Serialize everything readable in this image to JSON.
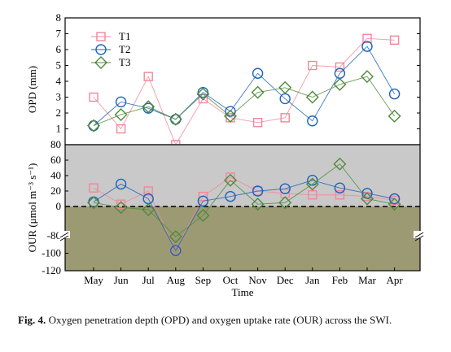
{
  "chart_data": {
    "type": "line",
    "xlabel": "Time",
    "x": [
      "May",
      "Jun",
      "Jul",
      "Aug",
      "Sep",
      "Oct",
      "Nov",
      "Dec",
      "Jan",
      "Feb",
      "Mar",
      "Apr"
    ],
    "series_styles": [
      {
        "name": "T1",
        "color": "#f0879b",
        "marker": "square"
      },
      {
        "name": "T2",
        "color": "#1b63b8",
        "marker": "circle"
      },
      {
        "name": "T3",
        "color": "#4f8a3c",
        "marker": "diamond"
      }
    ],
    "panels": [
      {
        "id": "opd",
        "ylabel": "OPD (mm)",
        "ylim": [
          0,
          8
        ],
        "yticks": [
          1,
          2,
          3,
          4,
          5,
          6,
          7,
          8
        ],
        "legend_position": "top-left",
        "series": [
          {
            "name": "T1",
            "values": [
              3.0,
              1.0,
              4.3,
              0.0,
              2.9,
              1.7,
              1.4,
              1.7,
              5.0,
              4.9,
              6.7,
              6.6
            ]
          },
          {
            "name": "T2",
            "values": [
              1.2,
              2.7,
              2.3,
              1.6,
              3.3,
              2.1,
              4.5,
              2.9,
              1.5,
              4.5,
              6.2,
              3.2
            ]
          },
          {
            "name": "T3",
            "values": [
              1.2,
              1.9,
              2.4,
              1.6,
              3.2,
              1.8,
              3.3,
              3.6,
              3.0,
              3.8,
              4.3,
              1.8
            ]
          }
        ]
      },
      {
        "id": "our",
        "ylabel": "OUR (μmol m⁻³ s⁻¹)",
        "ylim": [
          -120,
          80
        ],
        "axis_break": [
          -40,
          0
        ],
        "yticks_upper": [
          0,
          20,
          40,
          60,
          80
        ],
        "yticks_lower": [
          -80,
          -100,
          -120
        ],
        "reference_line": 0,
        "fill_above": "#c9c9c9",
        "fill_below": "#9c9a72",
        "series": [
          {
            "name": "T1",
            "values": [
              24,
              3,
              20,
              -97,
              13,
              38,
              20,
              17,
              15,
              15,
              13,
              8
            ]
          },
          {
            "name": "T2",
            "values": [
              6,
              29,
              10,
              -97,
              7,
              13,
              20,
              23,
              34,
              24,
              17,
              10
            ]
          },
          {
            "name": "T3",
            "values": [
              5,
              -2,
              -6,
              -81,
              -17,
              34,
              3,
              5,
              29,
              55,
              10,
              3
            ]
          }
        ]
      }
    ]
  },
  "caption": {
    "label": "Fig. 4.",
    "text": "Oxygen penetration depth (OPD) and oxygen uptake rate (OUR) across the SWI."
  }
}
